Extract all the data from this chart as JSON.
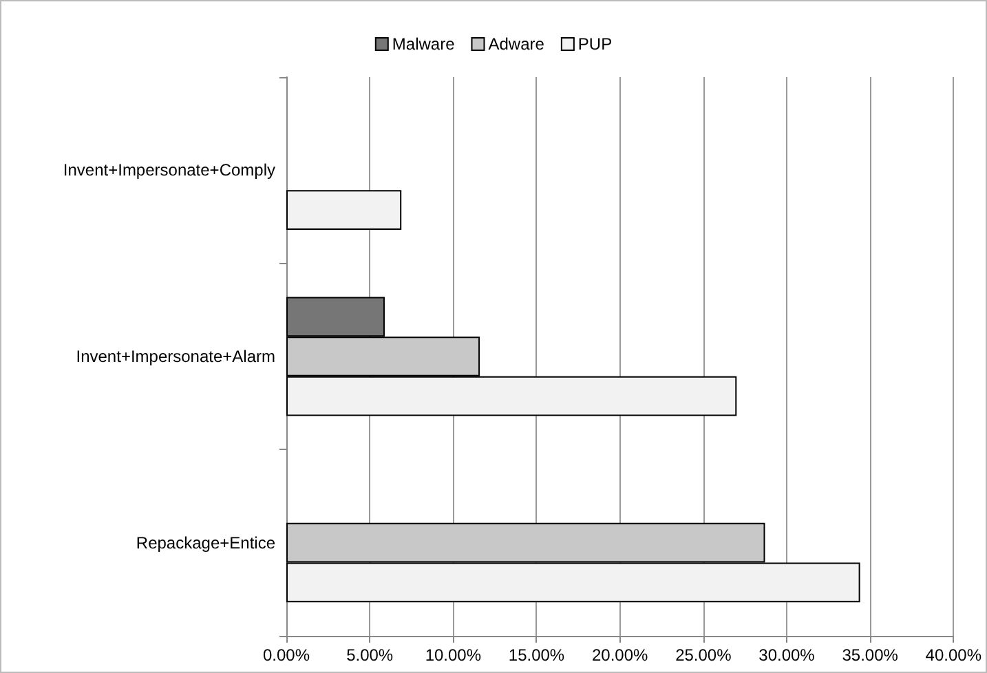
{
  "chart_data": {
    "type": "bar",
    "orientation": "horizontal",
    "categories": [
      "Invent+Impersonate+Comply",
      "Invent+Impersonate+Alarm",
      "Repackage+Entice"
    ],
    "series": [
      {
        "name": "Malware",
        "color": "#767676",
        "values": [
          null,
          5.9,
          null
        ]
      },
      {
        "name": "Adware",
        "color": "#c8c8c8",
        "values": [
          null,
          11.6,
          28.7
        ]
      },
      {
        "name": "PUP",
        "color": "#f2f2f2",
        "values": [
          6.9,
          27.0,
          34.4
        ]
      }
    ],
    "xlim": [
      0,
      40
    ],
    "xticks": [
      {
        "value": 0,
        "label": "0.00%"
      },
      {
        "value": 5,
        "label": "5.00%"
      },
      {
        "value": 10,
        "label": "10.00%"
      },
      {
        "value": 15,
        "label": "15.00%"
      },
      {
        "value": 20,
        "label": "20.00%"
      },
      {
        "value": 25,
        "label": "25.00%"
      },
      {
        "value": 30,
        "label": "30.00%"
      },
      {
        "value": 35,
        "label": "35.00%"
      },
      {
        "value": 40,
        "label": "40.00%"
      }
    ],
    "grid": "x",
    "legend": "top"
  }
}
